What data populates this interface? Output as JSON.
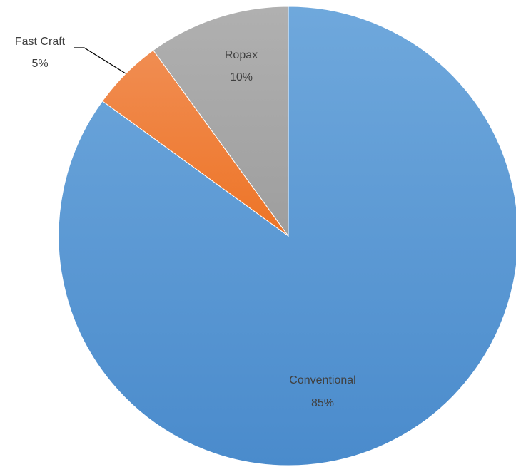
{
  "chart_data": {
    "type": "pie",
    "title": "",
    "start_angle_deg": 0,
    "direction": "clockwise",
    "slices": [
      {
        "name": "Conventional",
        "value": 85,
        "label": "85%",
        "color": "#5b9bd5"
      },
      {
        "name": "Fast Craft",
        "value": 5,
        "label": "5%",
        "color": "#ed7d31"
      },
      {
        "name": "Ropax",
        "value": 10,
        "label": "10%",
        "color": "#a5a5a5"
      }
    ],
    "legend": "none"
  }
}
